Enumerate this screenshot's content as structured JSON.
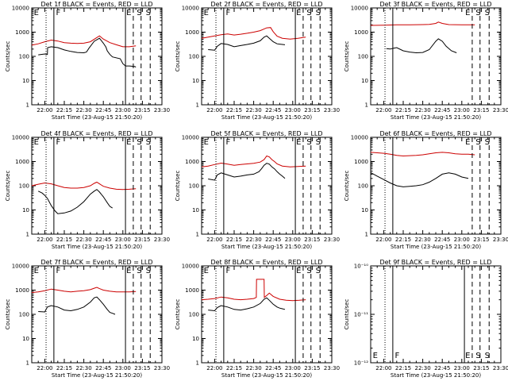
{
  "figure": {
    "xlabel": "Start Time (23-Aug-15 21:50:20)",
    "ylabel": "Counts/sec",
    "x_ticks": [
      "22:00",
      "22:15",
      "22:30",
      "22:45",
      "23:00",
      "23:15",
      "23:30"
    ]
  },
  "chart_data": [
    {
      "type": "line",
      "title": "Det 1f BLACK = Events, RED = LLD",
      "yscale": "log",
      "ylim": [
        1,
        10000
      ],
      "y_ticks": [
        "1",
        "10",
        "100",
        "1000",
        "10000"
      ],
      "x_ticks": [
        "22:00",
        "22:15",
        "22:30",
        "22:45",
        "23:00",
        "23:15",
        "23:30"
      ],
      "flags": [
        "E",
        "F",
        "E",
        "S",
        "S"
      ],
      "series": [
        {
          "color": "#000000",
          "x": [
            5,
            10,
            12,
            12.2,
            15,
            20,
            25,
            30,
            35,
            40,
            42,
            44,
            48,
            52,
            55,
            57,
            58,
            60,
            62,
            68,
            70,
            72,
            75,
            79,
            80
          ],
          "y": [
            115,
            125,
            120,
            230,
            250,
            230,
            185,
            160,
            145,
            140,
            150,
            220,
            420,
            560,
            350,
            240,
            170,
            120,
            95,
            80,
            50,
            40,
            40,
            38,
            36
          ]
        },
        {
          "color": "#cc0000",
          "x": [
            0,
            5,
            10,
            15,
            20,
            25,
            30,
            35,
            40,
            45,
            50,
            52,
            55,
            60,
            65,
            70,
            75,
            80
          ],
          "y": [
            290,
            330,
            400,
            470,
            430,
            370,
            350,
            340,
            350,
            400,
            600,
            700,
            520,
            370,
            300,
            250,
            250,
            270
          ]
        }
      ]
    },
    {
      "type": "line",
      "title": "Det 2f BLACK = Events, RED = LLD",
      "yscale": "log",
      "ylim": [
        1,
        10000
      ],
      "y_ticks": [
        "1",
        "10",
        "100",
        "1000",
        "10000"
      ],
      "x_ticks": [
        "22:00",
        "22:15",
        "22:30",
        "22:45",
        "23:00",
        "23:15",
        "23:30"
      ],
      "flags": [
        "E",
        "F",
        "E",
        "S",
        "S"
      ],
      "series": [
        {
          "color": "#000000",
          "x": [
            5,
            10,
            12,
            15,
            20,
            25,
            30,
            35,
            40,
            45,
            48,
            50,
            52,
            55,
            58,
            60,
            62,
            64
          ],
          "y": [
            190,
            180,
            260,
            340,
            310,
            250,
            280,
            310,
            350,
            440,
            620,
            700,
            560,
            400,
            330,
            320,
            310,
            300
          ]
        },
        {
          "color": "#cc0000",
          "x": [
            0,
            5,
            10,
            15,
            20,
            25,
            30,
            35,
            40,
            45,
            50,
            53,
            55,
            58,
            62,
            68,
            74,
            80
          ],
          "y": [
            560,
            620,
            700,
            780,
            850,
            760,
            820,
            900,
            1000,
            1150,
            1500,
            1550,
            1050,
            680,
            560,
            520,
            560,
            620
          ]
        }
      ]
    },
    {
      "type": "line",
      "title": "Det 3f BLACK = Events, RED = LLD",
      "yscale": "log",
      "ylim": [
        1,
        10000
      ],
      "y_ticks": [
        "1",
        "10",
        "100",
        "1000",
        "10000"
      ],
      "x_ticks": [
        "22:00",
        "22:15",
        "22:30",
        "22:45",
        "23:00",
        "23:15",
        "23:30"
      ],
      "flags": [
        "E",
        "S",
        "S"
      ],
      "series": [
        {
          "color": "#000000",
          "x": [
            12,
            15,
            18,
            20,
            25,
            30,
            35,
            40,
            45,
            50,
            52,
            55,
            58,
            62,
            66
          ],
          "y": [
            210,
            200,
            220,
            230,
            170,
            150,
            140,
            145,
            190,
            420,
            530,
            420,
            260,
            170,
            140
          ]
        },
        {
          "color": "#cc0000",
          "x": [
            0,
            10,
            20,
            30,
            40,
            45,
            50,
            52,
            55,
            60,
            70,
            80
          ],
          "y": [
            1900,
            1950,
            2000,
            2000,
            2050,
            2100,
            2300,
            2600,
            2300,
            2050,
            2000,
            2000
          ]
        }
      ]
    },
    {
      "type": "line",
      "title": "Det 4f BLACK = Events, RED = LLD",
      "yscale": "log",
      "ylim": [
        1,
        10000
      ],
      "y_ticks": [
        "1",
        "10",
        "100",
        "1000",
        "10000"
      ],
      "x_ticks": [
        "22:00",
        "22:15",
        "22:30",
        "22:45",
        "23:00",
        "23:15",
        "23:30"
      ],
      "flags": [
        "E",
        "F",
        "E",
        "S",
        "S"
      ],
      "series": [
        {
          "color": "#000000",
          "x": [
            5,
            8,
            10,
            12,
            15,
            18,
            20,
            25,
            30,
            35,
            40,
            45,
            48,
            50,
            52,
            55,
            58,
            60,
            62
          ],
          "y": [
            60,
            50,
            40,
            30,
            15,
            9,
            7,
            7.5,
            9,
            13,
            22,
            45,
            60,
            70,
            55,
            35,
            20,
            14,
            12
          ]
        },
        {
          "color": "#cc0000",
          "x": [
            0,
            5,
            10,
            15,
            20,
            25,
            30,
            35,
            40,
            45,
            48,
            50,
            52,
            55,
            60,
            65,
            70,
            75,
            80
          ],
          "y": [
            100,
            115,
            130,
            120,
            100,
            85,
            80,
            80,
            85,
            100,
            125,
            140,
            120,
            95,
            80,
            72,
            70,
            72,
            75
          ]
        }
      ]
    },
    {
      "type": "line",
      "title": "Det 5f BLACK = Events, RED = LLD",
      "yscale": "log",
      "ylim": [
        1,
        10000
      ],
      "y_ticks": [
        "1",
        "10",
        "100",
        "1000",
        "10000"
      ],
      "x_ticks": [
        "22:00",
        "22:15",
        "22:30",
        "22:45",
        "23:00",
        "23:15",
        "23:30"
      ],
      "flags": [
        "E",
        "F",
        "E",
        "S",
        "S"
      ],
      "series": [
        {
          "color": "#000000",
          "x": [
            5,
            10,
            12,
            15,
            20,
            25,
            30,
            35,
            40,
            44,
            46,
            48,
            50,
            52,
            54,
            56,
            58,
            60,
            62,
            64
          ],
          "y": [
            190,
            170,
            280,
            340,
            280,
            230,
            250,
            280,
            300,
            380,
            500,
            700,
            850,
            780,
            600,
            500,
            380,
            300,
            250,
            200
          ]
        },
        {
          "color": "#cc0000",
          "x": [
            0,
            5,
            10,
            15,
            20,
            25,
            30,
            35,
            40,
            45,
            48,
            50,
            52,
            54,
            56,
            58,
            62,
            68,
            74,
            80
          ],
          "y": [
            600,
            650,
            750,
            860,
            780,
            700,
            750,
            800,
            850,
            950,
            1200,
            1700,
            1550,
            1200,
            1000,
            800,
            650,
            600,
            620,
            650
          ]
        }
      ]
    },
    {
      "type": "line",
      "title": "Det 6f BLACK = Events, RED = LLD",
      "yscale": "log",
      "ylim": [
        1,
        10000
      ],
      "y_ticks": [
        "1",
        "10",
        "100",
        "1000",
        "10000"
      ],
      "x_ticks": [
        "22:00",
        "22:15",
        "22:30",
        "22:45",
        "23:00",
        "23:15",
        "23:30"
      ],
      "flags": [
        "E",
        "S",
        "S"
      ],
      "series": [
        {
          "color": "#000000",
          "x": [
            0,
            5,
            10,
            15,
            20,
            25,
            30,
            35,
            40,
            45,
            50,
            55,
            60,
            65,
            70,
            75
          ],
          "y": [
            350,
            250,
            180,
            130,
            100,
            90,
            95,
            100,
            110,
            140,
            200,
            300,
            340,
            300,
            230,
            200
          ]
        },
        {
          "color": "#cc0000",
          "x": [
            0,
            5,
            10,
            15,
            20,
            25,
            30,
            35,
            40,
            45,
            50,
            55,
            60,
            65,
            70,
            75,
            80
          ],
          "y": [
            2400,
            2300,
            2200,
            2000,
            1800,
            1700,
            1750,
            1800,
            1900,
            2100,
            2300,
            2400,
            2300,
            2100,
            2000,
            2000,
            1900
          ]
        }
      ]
    },
    {
      "type": "line",
      "title": "Det 7f BLACK = Events, RED = LLD",
      "yscale": "log",
      "ylim": [
        1,
        10000
      ],
      "y_ticks": [
        "1",
        "10",
        "100",
        "1000",
        "10000"
      ],
      "x_ticks": [
        "22:00",
        "22:15",
        "22:30",
        "22:45",
        "23:00",
        "23:15",
        "23:30"
      ],
      "flags": [
        "E",
        "F",
        "E",
        "S",
        "S"
      ],
      "series": [
        {
          "color": "#000000",
          "x": [
            5,
            10,
            12,
            15,
            20,
            25,
            30,
            35,
            40,
            45,
            48,
            50,
            52,
            55,
            58,
            60,
            62,
            64
          ],
          "y": [
            130,
            125,
            200,
            230,
            200,
            150,
            140,
            160,
            200,
            320,
            480,
            520,
            400,
            260,
            160,
            120,
            110,
            100
          ]
        },
        {
          "color": "#cc0000",
          "x": [
            0,
            5,
            10,
            15,
            20,
            25,
            30,
            35,
            40,
            45,
            48,
            50,
            52,
            55,
            60,
            65,
            70,
            75,
            80
          ],
          "y": [
            800,
            850,
            950,
            1100,
            1000,
            900,
            850,
            900,
            950,
            1050,
            1200,
            1300,
            1150,
            1000,
            900,
            850,
            850,
            850,
            870
          ]
        }
      ]
    },
    {
      "type": "line",
      "title": "Det 8f BLACK = Events, RED = LLD",
      "yscale": "log",
      "ylim": [
        1,
        10000
      ],
      "y_ticks": [
        "1",
        "10",
        "100",
        "1000",
        "10000"
      ],
      "x_ticks": [
        "22:00",
        "22:15",
        "22:30",
        "22:45",
        "23:00",
        "23:15",
        "23:30"
      ],
      "flags": [
        "E",
        "F",
        "E",
        "S",
        "S"
      ],
      "series": [
        {
          "color": "#000000",
          "x": [
            5,
            10,
            12,
            15,
            20,
            25,
            30,
            35,
            40,
            45,
            48,
            50,
            52,
            55,
            58,
            60,
            62,
            64
          ],
          "y": [
            150,
            140,
            190,
            230,
            200,
            160,
            150,
            170,
            200,
            280,
            420,
            480,
            380,
            260,
            200,
            180,
            170,
            160
          ]
        },
        {
          "color": "#cc0000",
          "x": [
            0,
            5,
            10,
            15,
            20,
            25,
            30,
            35,
            40,
            42,
            42.2,
            48,
            48.2,
            50,
            52,
            55,
            60,
            65,
            70,
            75,
            80
          ],
          "y": [
            400,
            420,
            450,
            520,
            480,
            420,
            400,
            420,
            450,
            500,
            2800,
            2800,
            500,
            600,
            750,
            550,
            420,
            380,
            370,
            380,
            400
          ]
        }
      ]
    },
    {
      "type": "line",
      "title": "Det 9f BLACK = Events, RED = LLD",
      "yscale": "log",
      "ylim": [
        1e-12,
        1e-10
      ],
      "y_ticks": [
        "10⁻¹²",
        "10⁻¹¹",
        "10⁻¹⁰"
      ],
      "x_ticks": [
        "22:00",
        "22:15",
        "22:30",
        "22:45",
        "23:00",
        "23:15",
        "23:30"
      ],
      "flags": [
        "E",
        "F",
        "E",
        "S",
        "S"
      ],
      "series": []
    }
  ]
}
